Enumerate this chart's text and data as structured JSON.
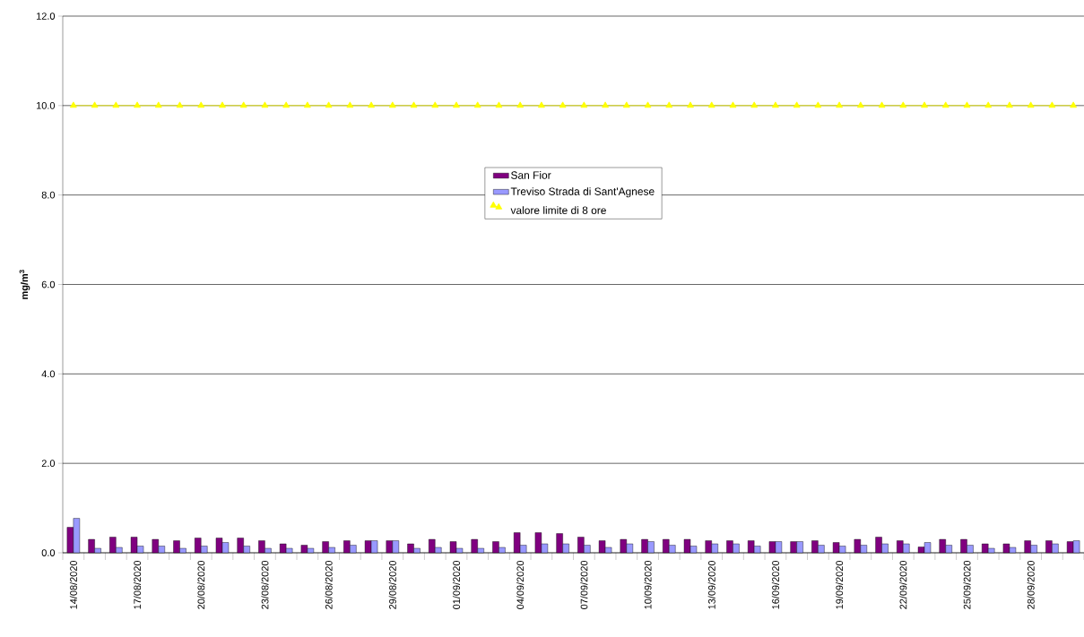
{
  "chart_data": {
    "type": "bar",
    "ylabel": "mg/m$^{3}$",
    "categories": [
      "14/08/2020",
      null,
      null,
      "17/08/2020",
      null,
      null,
      "20/08/2020",
      null,
      null,
      "23/08/2020",
      null,
      null,
      "26/08/2020",
      null,
      null,
      "29/08/2020",
      null,
      null,
      "01/09/2020",
      null,
      null,
      "04/09/2020",
      null,
      null,
      "07/09/2020",
      null,
      null,
      "10/09/2020",
      null,
      null,
      "13/09/2020",
      null,
      null,
      "16/09/2020",
      null,
      null,
      "19/09/2020",
      null,
      null,
      "22/09/2020",
      null,
      null,
      "25/09/2020",
      null,
      null,
      "28/09/2020",
      null,
      null
    ],
    "series": [
      {
        "name": "San Fior",
        "color": "#800080",
        "values": [
          0.57,
          0.3,
          0.35,
          0.35,
          0.3,
          0.27,
          0.33,
          0.33,
          0.33,
          0.27,
          0.2,
          0.17,
          0.25,
          0.27,
          0.27,
          0.27,
          0.2,
          0.3,
          0.25,
          0.3,
          0.25,
          0.45,
          0.45,
          0.43,
          0.35,
          0.27,
          0.3,
          0.3,
          0.3,
          0.3,
          0.27,
          0.27,
          0.27,
          0.25,
          0.25,
          0.27,
          0.23,
          0.3,
          0.35,
          0.27,
          0.13,
          0.3,
          0.3,
          0.2,
          0.2,
          0.27,
          0.27,
          0.25
        ]
      },
      {
        "name": "Treviso Strada di Sant'Agnese",
        "color": "#9999ff",
        "values": [
          0.77,
          0.1,
          0.12,
          0.15,
          0.15,
          0.1,
          0.15,
          0.23,
          0.15,
          0.1,
          0.1,
          0.1,
          0.12,
          0.17,
          0.27,
          0.27,
          0.1,
          0.12,
          0.1,
          0.1,
          0.12,
          0.17,
          0.2,
          0.2,
          0.17,
          0.12,
          0.2,
          0.25,
          0.17,
          0.15,
          0.2,
          0.2,
          0.15,
          0.25,
          0.25,
          0.17,
          0.15,
          0.17,
          0.2,
          0.2,
          0.23,
          0.17,
          0.17,
          0.1,
          0.12,
          0.17,
          0.2,
          0.27
        ]
      },
      {
        "name": "valore limite di 8 ore",
        "type": "line",
        "marker": "triangle",
        "color": "#ffff00",
        "values": [
          10,
          10,
          10,
          10,
          10,
          10,
          10,
          10,
          10,
          10,
          10,
          10,
          10,
          10,
          10,
          10,
          10,
          10,
          10,
          10,
          10,
          10,
          10,
          10,
          10,
          10,
          10,
          10,
          10,
          10,
          10,
          10,
          10,
          10,
          10,
          10,
          10,
          10,
          10,
          10,
          10,
          10,
          10,
          10,
          10,
          10,
          10,
          10
        ]
      }
    ],
    "ylim": [
      0,
      12
    ],
    "yticks": [
      {
        "value": 0,
        "label": "0.0"
      },
      {
        "value": 2,
        "label": "2.0"
      },
      {
        "value": 4,
        "label": "4.0"
      },
      {
        "value": 6,
        "label": "6.0"
      },
      {
        "value": 8,
        "label": "8.0"
      },
      {
        "value": 10,
        "label": "10.0"
      },
      {
        "value": 12,
        "label": "12.0"
      }
    ],
    "grid": "y",
    "legend": "top"
  }
}
